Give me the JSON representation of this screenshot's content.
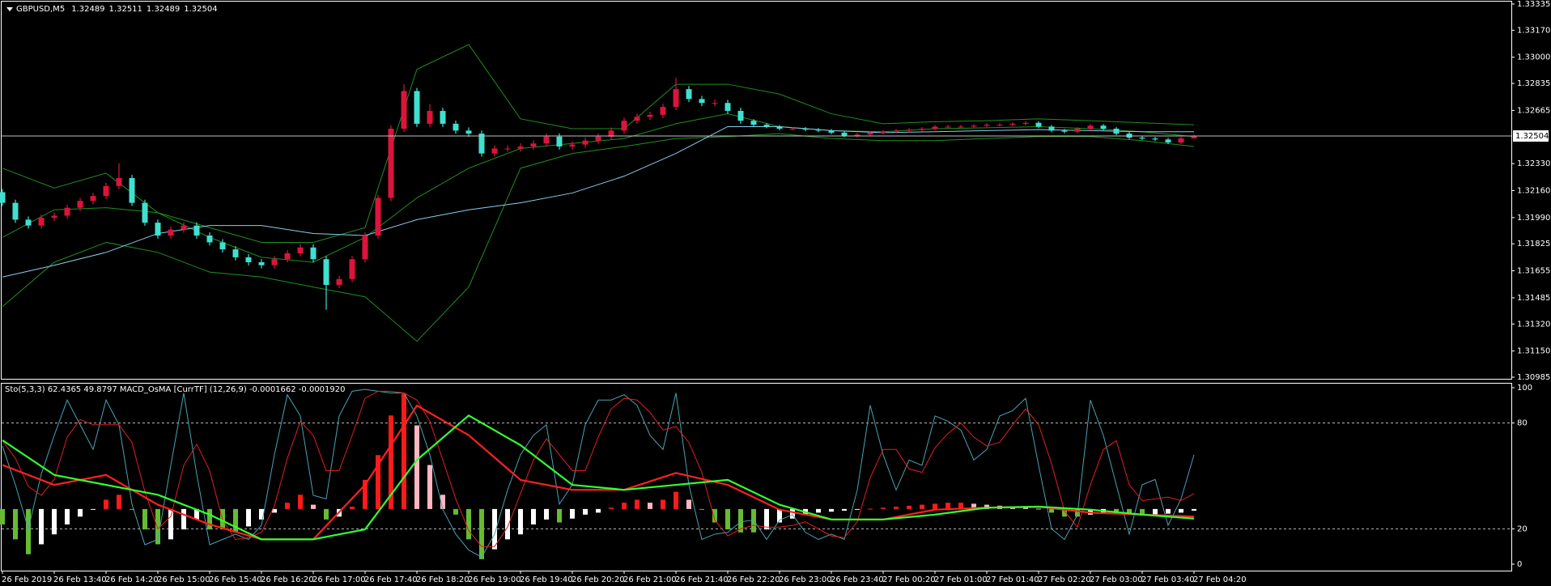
{
  "chart_data": [
    {
      "type": "candlestick",
      "symbol": "GBPUSD,M5",
      "up_color": "#dc143c",
      "down_color": "#40e0d0",
      "open": [
        1.3215,
        1.32083,
        1.31977,
        1.3194,
        1.31989,
        1.32002,
        1.32052,
        1.32095,
        1.32126,
        1.32189,
        1.32239,
        1.32083,
        1.31958,
        1.31877,
        1.31915,
        1.3194,
        1.31877,
        1.31834,
        1.3179,
        1.3174,
        1.31709,
        1.3169,
        1.31728,
        1.31765,
        1.31802,
        1.31728,
        1.31566,
        1.31603,
        1.31728,
        1.31877,
        1.32114,
        1.3255,
        1.32787,
        1.32581,
        1.32662,
        1.32581,
        1.32538,
        1.32519,
        1.32394,
        1.32425,
        1.32425,
        1.32438,
        1.32457,
        1.325,
        1.32438,
        1.3245,
        1.32475,
        1.325,
        1.32538,
        1.326,
        1.32625,
        1.32637,
        1.32687,
        1.32799,
        1.32737,
        1.32712,
        1.32712,
        1.32662,
        1.326,
        1.32575,
        1.32563,
        1.3255,
        1.3255,
        1.32544,
        1.32538,
        1.32525,
        1.32506,
        1.32513,
        1.32525,
        1.32531,
        1.32538,
        1.32544,
        1.3255,
        1.32563,
        1.32563,
        1.32563,
        1.32569,
        1.32575,
        1.32575,
        1.32581,
        1.32587,
        1.32563,
        1.32538,
        1.32531,
        1.3255,
        1.32569,
        1.3255,
        1.32519,
        1.32494,
        1.32488,
        1.32482,
        1.32463,
        1.32489
      ],
      "high": [
        1.3217,
        1.32103,
        1.31997,
        1.32009,
        1.32022,
        1.32072,
        1.32115,
        1.32146,
        1.32209,
        1.32332,
        1.32259,
        1.32103,
        1.31978,
        1.31935,
        1.3196,
        1.3196,
        1.31897,
        1.31854,
        1.3181,
        1.3176,
        1.31729,
        1.31748,
        1.31785,
        1.31822,
        1.31822,
        1.31748,
        1.31623,
        1.31748,
        1.31897,
        1.32134,
        1.3257,
        1.3283,
        1.32807,
        1.32705,
        1.32682,
        1.32601,
        1.32558,
        1.32539,
        1.32445,
        1.32445,
        1.32458,
        1.32477,
        1.3252,
        1.3252,
        1.3247,
        1.32495,
        1.3252,
        1.32558,
        1.3262,
        1.32645,
        1.32657,
        1.32707,
        1.3287,
        1.32819,
        1.32757,
        1.32732,
        1.32732,
        1.32682,
        1.3261,
        1.32585,
        1.32573,
        1.3256,
        1.3256,
        1.32554,
        1.32548,
        1.32535,
        1.32523,
        1.32535,
        1.32541,
        1.32548,
        1.32554,
        1.3256,
        1.32573,
        1.32573,
        1.32573,
        1.32579,
        1.32585,
        1.32585,
        1.32591,
        1.32597,
        1.32597,
        1.32573,
        1.32548,
        1.3256,
        1.32579,
        1.32579,
        1.3256,
        1.32529,
        1.32504,
        1.32498,
        1.32492,
        1.32499,
        1.32511
      ],
      "low": [
        1.32063,
        1.31957,
        1.3192,
        1.3192,
        1.31969,
        1.31982,
        1.32032,
        1.32075,
        1.32106,
        1.32169,
        1.32063,
        1.31938,
        1.31857,
        1.31857,
        1.31895,
        1.31857,
        1.31814,
        1.3177,
        1.3172,
        1.31689,
        1.3167,
        1.3167,
        1.31708,
        1.31745,
        1.31708,
        1.3141,
        1.31546,
        1.31583,
        1.31708,
        1.31857,
        1.32094,
        1.3253,
        1.32561,
        1.32561,
        1.32561,
        1.32518,
        1.32499,
        1.32374,
        1.32374,
        1.32405,
        1.32405,
        1.32418,
        1.32437,
        1.32418,
        1.32418,
        1.3243,
        1.32455,
        1.3248,
        1.32518,
        1.3258,
        1.32605,
        1.32617,
        1.32667,
        1.32717,
        1.32692,
        1.32692,
        1.32642,
        1.3258,
        1.32565,
        1.32553,
        1.3254,
        1.3254,
        1.32534,
        1.32528,
        1.32515,
        1.32496,
        1.32496,
        1.32503,
        1.32515,
        1.32521,
        1.32528,
        1.32534,
        1.3254,
        1.32553,
        1.32553,
        1.32553,
        1.32559,
        1.32565,
        1.32565,
        1.32571,
        1.32553,
        1.32528,
        1.32521,
        1.32521,
        1.3254,
        1.3254,
        1.32509,
        1.32484,
        1.32478,
        1.32472,
        1.32453,
        1.32453,
        1.32489
      ],
      "close": [
        1.32083,
        1.31977,
        1.3194,
        1.31989,
        1.32002,
        1.32052,
        1.32095,
        1.32126,
        1.32189,
        1.32239,
        1.32083,
        1.31958,
        1.31877,
        1.31915,
        1.3194,
        1.31877,
        1.31834,
        1.3179,
        1.3174,
        1.31709,
        1.3169,
        1.31728,
        1.31765,
        1.31802,
        1.31728,
        1.31566,
        1.31603,
        1.31728,
        1.31877,
        1.32114,
        1.3255,
        1.32787,
        1.32581,
        1.32662,
        1.32581,
        1.32538,
        1.32519,
        1.32394,
        1.32425,
        1.32425,
        1.32438,
        1.32457,
        1.325,
        1.32438,
        1.3245,
        1.32475,
        1.325,
        1.32538,
        1.326,
        1.32625,
        1.32637,
        1.32687,
        1.32799,
        1.32737,
        1.32712,
        1.32712,
        1.32662,
        1.326,
        1.32575,
        1.32563,
        1.3255,
        1.3255,
        1.32544,
        1.32538,
        1.32525,
        1.32506,
        1.32513,
        1.32525,
        1.32531,
        1.32538,
        1.32544,
        1.3255,
        1.32563,
        1.32563,
        1.32563,
        1.32569,
        1.32575,
        1.32575,
        1.32581,
        1.32587,
        1.32563,
        1.32538,
        1.32531,
        1.3255,
        1.32569,
        1.3255,
        1.32519,
        1.32494,
        1.32488,
        1.32482,
        1.32463,
        1.32489,
        1.32504
      ],
      "overlays": [
        {
          "color": "#1f8f1f",
          "values": [
            1.32301,
            1.32176,
            1.3227,
            1.32021,
            1.31927,
            1.31834,
            1.31834,
            1.31927,
            1.32924,
            1.3308,
            1.32612,
            1.3255,
            1.3255,
            1.3283,
            1.3283,
            1.32768,
            1.32644,
            1.32581,
            1.32594,
            1.326,
            1.32612,
            1.326,
            1.32587,
            1.32575
          ]
        },
        {
          "color": "#1f8f1f",
          "values": [
            1.31865,
            1.32039,
            1.32052,
            1.32021,
            1.31865,
            1.3174,
            1.31709,
            1.31865,
            1.32114,
            1.32301,
            1.32425,
            1.32457,
            1.32488,
            1.32581,
            1.32644,
            1.32563,
            1.32538,
            1.32531,
            1.3255,
            1.32556,
            1.32563,
            1.3255,
            1.32531,
            1.325
          ]
        },
        {
          "color": "#1f8f1f",
          "values": [
            1.31429,
            1.31709,
            1.31834,
            1.31771,
            1.31647,
            1.31616,
            1.31553,
            1.31491,
            1.31211,
            1.31553,
            1.32301,
            1.32394,
            1.32438,
            1.32488,
            1.325,
            1.32519,
            1.32488,
            1.32475,
            1.32475,
            1.32488,
            1.325,
            1.325,
            1.32475,
            1.32438
          ]
        },
        {
          "color": "#87ceeb",
          "values": [
            1.31616,
            1.3169,
            1.31771,
            1.3189,
            1.3194,
            1.3194,
            1.3189,
            1.31877,
            1.31977,
            1.32039,
            1.32083,
            1.32145,
            1.32251,
            1.32394,
            1.32563,
            1.32563,
            1.32538,
            1.32525,
            1.32531,
            1.32538,
            1.32544,
            1.32538,
            1.32531,
            1.32531
          ]
        }
      ],
      "ylim": [
        1.30985,
        1.33335
      ],
      "yticks": [
        {
          "value": 1.33335,
          "label": "1.33335"
        },
        {
          "value": 1.3317,
          "label": "1.33170"
        },
        {
          "value": 1.33,
          "label": "1.33000"
        },
        {
          "value": 1.32835,
          "label": "1.32835"
        },
        {
          "value": 1.32665,
          "label": "1.32665"
        },
        {
          "value": 1.3233,
          "label": "1.32330"
        },
        {
          "value": 1.3216,
          "label": "1.32160"
        },
        {
          "value": 1.3199,
          "label": "1.31990"
        },
        {
          "value": 1.31825,
          "label": "1.31825"
        },
        {
          "value": 1.31655,
          "label": "1.31655"
        },
        {
          "value": 1.31485,
          "label": "1.31485"
        },
        {
          "value": 1.3132,
          "label": "1.31320"
        },
        {
          "value": 1.3115,
          "label": "1.31150"
        },
        {
          "value": 1.30985,
          "label": "1.30985"
        }
      ],
      "x_labels": [
        "26 Feb 2019",
        "26 Feb 13:40",
        "26 Feb 14:20",
        "26 Feb 15:00",
        "26 Feb 15:40",
        "26 Feb 16:20",
        "26 Feb 17:00",
        "26 Feb 17:40",
        "26 Feb 18:20",
        "26 Feb 19:00",
        "26 Feb 19:40",
        "26 Feb 20:20",
        "26 Feb 21:00",
        "26 Feb 21:40",
        "26 Feb 22:20",
        "26 Feb 23:00",
        "26 Feb 23:40",
        "27 Feb 00:20",
        "27 Feb 01:00",
        "27 Feb 01:40",
        "27 Feb 02:20",
        "27 Feb 03:00",
        "27 Feb 03:40",
        "27 Feb 04:20"
      ]
    },
    {
      "type": "oscillator",
      "title": "Sto(5,3,3) 62.4365 49.8797  MACD_OsMA [CurrTF] (12,26,9) -0.0001662 -0.0001920",
      "ylim": [
        0,
        100
      ],
      "yticks": [
        0,
        20,
        80,
        100
      ],
      "levels": [
        20,
        80
      ],
      "lines": [
        {
          "color": "#4aa3b3",
          "values": [
            67,
            45,
            20,
            51,
            73,
            93,
            79,
            65,
            93,
            79,
            34,
            11,
            14,
            56,
            97,
            51,
            11,
            14,
            17,
            14,
            22,
            62,
            96,
            84,
            39,
            37,
            84,
            98,
            99,
            98,
            97,
            97,
            84,
            62,
            31,
            17,
            8,
            4,
            17,
            42,
            62,
            73,
            79,
            34,
            45,
            79,
            93,
            93,
            96,
            90,
            73,
            65,
            97,
            45,
            14,
            17,
            18,
            24,
            25,
            14,
            25,
            28,
            18,
            14,
            17,
            14,
            42,
            90,
            62,
            42,
            59,
            56,
            84,
            81,
            76,
            59,
            65,
            84,
            87,
            94,
            56,
            20,
            14,
            28,
            93,
            73,
            45,
            17,
            45,
            48,
            22,
            37,
            62
          ]
        },
        {
          "color": "#e02020",
          "values": [
            70,
            60,
            44,
            39,
            48,
            72,
            82,
            79,
            79,
            79,
            69,
            41,
            20,
            27,
            56,
            68,
            53,
            25,
            14,
            15,
            18,
            33,
            60,
            81,
            73,
            53,
            53,
            73,
            94,
            98,
            98,
            97,
            93,
            81,
            59,
            37,
            19,
            10,
            10,
            21,
            40,
            59,
            71,
            62,
            53,
            53,
            72,
            88,
            94,
            93,
            86,
            76,
            78,
            69,
            52,
            25,
            16,
            20,
            22,
            21,
            21,
            22,
            24,
            20,
            16,
            15,
            24,
            49,
            65,
            65,
            54,
            52,
            66,
            74,
            80,
            72,
            67,
            69,
            79,
            88,
            79,
            57,
            30,
            21,
            45,
            65,
            70,
            45,
            36,
            37,
            38,
            36,
            40
          ]
        }
      ],
      "histogram": {
        "hlim": [
          -0.0005,
          0.0011
        ],
        "colors": {
          "up_rising": "#ff1a1a",
          "up_falling": "#ffb6c1",
          "down_falling": "#66bb33",
          "down_rising": "#ffffff"
        },
        "values": [
          -0.00014,
          -0.000275,
          -0.00041,
          -0.00032,
          -0.00023,
          -0.00014,
          -6.9e-05,
          -6e-06,
          8.4e-05,
          0.000129,
          -6e-06,
          -0.000185,
          -0.00032,
          -0.000275,
          -0.000185,
          -9.5e-05,
          -0.000185,
          -0.000185,
          -0.000212,
          -0.000158,
          -9.5e-05,
          -3.3e-05,
          5.7e-05,
          0.000129,
          3.9e-05,
          -9.5e-05,
          -6.9e-05,
          2.1e-05,
          0.000264,
          0.000489,
          0.000848,
          0.001046,
          0.000758,
          0.000399,
          0.000129,
          -5.1e-05,
          -0.000275,
          -0.000455,
          -0.000365,
          -0.000275,
          -0.00023,
          -0.00014,
          -9.5e-05,
          -0.000122,
          -8.7e-05,
          -5.1e-05,
          -3.3e-05,
          1.2e-05,
          5.7e-05,
          8.4e-05,
          5.7e-05,
          8.4e-05,
          0.000156,
          8.4e-05,
          -6e-06,
          -0.000122,
          -0.000185,
          -0.000212,
          -0.000212,
          -0.000185,
          -0.000122,
          -8.7e-05,
          -5.1e-05,
          -3.3e-05,
          -2.4e-05,
          -1.5e-05,
          -6e-06,
          3e-06,
          1.2e-05,
          2.1e-05,
          3e-05,
          3.9e-05,
          4.8e-05,
          5.7e-05,
          5.7e-05,
          4.8e-05,
          3.9e-05,
          3e-05,
          2.1e-05,
          1.2e-05,
          3e-06,
          -3.3e-05,
          -6.9e-05,
          -6.9e-05,
          -5.1e-05,
          -4.2e-05,
          -4.2e-05,
          -5.1e-05,
          -6e-05,
          -5.1e-05,
          -4.2e-05,
          -3.3e-05,
          -1.5e-05
        ]
      },
      "macd_lines": [
        {
          "color": "#ff2020",
          "values": [
            0.000399,
            0.000219,
            0.000309,
            3.9e-05,
            -0.00014,
            -0.000275,
            -0.000275,
            0.000219,
            0.000938,
            0.000669,
            0.000264,
            0.000174,
            0.000174,
            0.000327,
            0.000219,
            -6e-06,
            -9.5e-05,
            -9.5e-05,
            -6e-06,
            1.2e-05,
            2.1e-05,
            -3.3e-05,
            -5.1e-05,
            -6.9e-05
          ]
        },
        {
          "color": "#33ff33",
          "values": [
            0.000624,
            0.000309,
            0.000219,
            0.000129,
            -5.1e-05,
            -0.000275,
            -0.000275,
            -0.000185,
            0.000444,
            0.000848,
            0.000579,
            0.000219,
            0.000174,
            0.000219,
            0.000264,
            3.9e-05,
            -9.5e-05,
            -9.5e-05,
            -5.1e-05,
            1.2e-05,
            2.1e-05,
            -6e-06,
            -5.1e-05,
            -8.7e-05
          ]
        }
      ]
    }
  ]
}
